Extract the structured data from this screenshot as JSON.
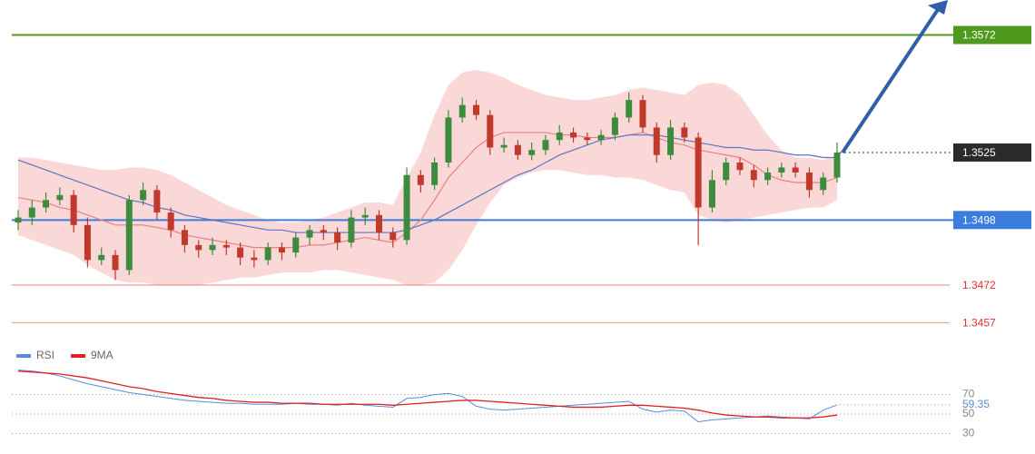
{
  "chart_data": [
    {
      "type": "candlestick",
      "ylim": [
        1.3448,
        1.3586
      ],
      "up_color": "#3d8b3d",
      "down_color": "#c0392b",
      "open": [
        1.3497,
        1.3499,
        1.3503,
        1.3506,
        1.3508,
        1.3496,
        1.3482,
        1.3484,
        1.3478,
        1.3506,
        1.351,
        1.3501,
        1.3494,
        1.3488,
        1.3486,
        1.3488,
        1.3487,
        1.3483,
        1.3482,
        1.3487,
        1.3485,
        1.3491,
        1.3494,
        1.3493,
        1.3489,
        1.3499,
        1.35,
        1.3493,
        1.349,
        1.3516,
        1.3512,
        1.3521,
        1.3539,
        1.3544,
        1.354,
        1.3527,
        1.3528,
        1.3524,
        1.3526,
        1.353,
        1.3533,
        1.3531,
        1.353,
        1.3532,
        1.3539,
        1.3546,
        1.3535,
        1.3524,
        1.3535,
        1.3531,
        1.3503,
        1.3514,
        1.3521,
        1.3518,
        1.3514,
        1.3517,
        1.3519,
        1.3517,
        1.351,
        1.3515
      ],
      "high": [
        1.3502,
        1.3506,
        1.3509,
        1.3511,
        1.351,
        1.3499,
        1.3487,
        1.3486,
        1.3508,
        1.3513,
        1.3512,
        1.3503,
        1.3496,
        1.349,
        1.3491,
        1.349,
        1.3489,
        1.3486,
        1.3489,
        1.3489,
        1.3493,
        1.3496,
        1.3496,
        1.3495,
        1.3502,
        1.3503,
        1.3502,
        1.3495,
        1.3519,
        1.3518,
        1.3523,
        1.3542,
        1.3547,
        1.3546,
        1.3542,
        1.3531,
        1.353,
        1.3529,
        1.3532,
        1.3536,
        1.3535,
        1.3533,
        1.3534,
        1.3541,
        1.3549,
        1.3548,
        1.3537,
        1.3538,
        1.3537,
        1.3533,
        1.3518,
        1.3523,
        1.3523,
        1.352,
        1.3519,
        1.3521,
        1.3521,
        1.3519,
        1.3517,
        1.3529
      ],
      "low": [
        1.3494,
        1.3496,
        1.3501,
        1.3504,
        1.3493,
        1.3479,
        1.348,
        1.3474,
        1.3476,
        1.3504,
        1.3498,
        1.3491,
        1.3485,
        1.3483,
        1.3484,
        1.3484,
        1.348,
        1.3479,
        1.348,
        1.3482,
        1.3483,
        1.3488,
        1.349,
        1.3486,
        1.3487,
        1.3496,
        1.349,
        1.3487,
        1.3488,
        1.3509,
        1.351,
        1.3519,
        1.3537,
        1.3538,
        1.3524,
        1.3525,
        1.3522,
        1.3522,
        1.3524,
        1.3528,
        1.3529,
        1.3528,
        1.3528,
        1.353,
        1.3537,
        1.3533,
        1.3521,
        1.3522,
        1.3529,
        1.3488,
        1.3501,
        1.3512,
        1.3516,
        1.3511,
        1.3512,
        1.3515,
        1.3515,
        1.3507,
        1.3508,
        1.3513
      ],
      "close": [
        1.3499,
        1.3503,
        1.3506,
        1.3508,
        1.3496,
        1.3482,
        1.3484,
        1.3478,
        1.3506,
        1.351,
        1.3501,
        1.3494,
        1.3488,
        1.3486,
        1.3488,
        1.3487,
        1.3483,
        1.3482,
        1.3487,
        1.3485,
        1.3491,
        1.3494,
        1.3493,
        1.3489,
        1.3499,
        1.35,
        1.3493,
        1.349,
        1.3516,
        1.3512,
        1.3521,
        1.3539,
        1.3544,
        1.354,
        1.3527,
        1.3528,
        1.3524,
        1.3526,
        1.353,
        1.3533,
        1.3531,
        1.353,
        1.3532,
        1.3539,
        1.3546,
        1.3535,
        1.3524,
        1.3535,
        1.3531,
        1.3503,
        1.3514,
        1.3521,
        1.3518,
        1.3514,
        1.3517,
        1.3519,
        1.3517,
        1.351,
        1.3515,
        1.3525
      ],
      "band": {
        "color": "#fad1d1",
        "upper": [
          1.3523,
          1.3523,
          1.3522,
          1.3521,
          1.352,
          1.3519,
          1.3518,
          1.3518,
          1.3519,
          1.3519,
          1.3518,
          1.3516,
          1.3513,
          1.351,
          1.3507,
          1.3504,
          1.3502,
          1.35,
          1.3498,
          1.3497,
          1.3497,
          1.3498,
          1.3499,
          1.3501,
          1.3503,
          1.3505,
          1.3505,
          1.3504,
          1.3515,
          1.3525,
          1.354,
          1.3552,
          1.3557,
          1.3558,
          1.3557,
          1.3555,
          1.3552,
          1.355,
          1.3548,
          1.3547,
          1.3546,
          1.3546,
          1.3547,
          1.3548,
          1.355,
          1.3551,
          1.355,
          1.3549,
          1.3548,
          1.3552,
          1.3553,
          1.3552,
          1.3548,
          1.354,
          1.3532,
          1.3526,
          1.3523,
          1.3523,
          1.3522,
          1.3524
        ],
        "lower": [
          1.3492,
          1.349,
          1.3488,
          1.3486,
          1.3484,
          1.348,
          1.3477,
          1.3474,
          1.3473,
          1.3473,
          1.3472,
          1.3472,
          1.3472,
          1.3472,
          1.3473,
          1.3474,
          1.3475,
          1.3475,
          1.3476,
          1.3477,
          1.3477,
          1.3477,
          1.3478,
          1.3478,
          1.3477,
          1.3476,
          1.3475,
          1.3474,
          1.3472,
          1.3472,
          1.3473,
          1.3478,
          1.3486,
          1.3496,
          1.3505,
          1.3512,
          1.3515,
          1.3517,
          1.3518,
          1.3518,
          1.3517,
          1.3516,
          1.3516,
          1.3515,
          1.3515,
          1.3514,
          1.3512,
          1.351,
          1.3509,
          1.35,
          1.3498,
          1.3497,
          1.3498,
          1.3499,
          1.35,
          1.3501,
          1.3502,
          1.3503,
          1.3503,
          1.3506
        ]
      },
      "overlays": [
        {
          "color": "#e88080",
          "values": [
            1.3507,
            1.3506,
            1.3505,
            1.3503,
            1.3502,
            1.35,
            1.3498,
            1.3496,
            1.3496,
            1.3496,
            1.3495,
            1.3494,
            1.3492,
            1.3491,
            1.349,
            1.3489,
            1.3488,
            1.3487,
            1.3487,
            1.3487,
            1.3487,
            1.3488,
            1.3488,
            1.3489,
            1.349,
            1.3491,
            1.349,
            1.3489,
            1.3493,
            1.3498,
            1.3506,
            1.3515,
            1.3521,
            1.3527,
            1.3531,
            1.3533,
            1.3533,
            1.3533,
            1.3533,
            1.3532,
            1.3532,
            1.3531,
            1.3531,
            1.3531,
            1.3532,
            1.3533,
            1.3531,
            1.3529,
            1.3528,
            1.3526,
            1.3525,
            1.3524,
            1.3523,
            1.352,
            1.3516,
            1.3514,
            1.3513,
            1.3513,
            1.3513,
            1.3515
          ]
        },
        {
          "color": "#5b73c4",
          "values": [
            1.3522,
            1.352,
            1.3518,
            1.3516,
            1.3514,
            1.3512,
            1.351,
            1.3508,
            1.3506,
            1.3505,
            1.3503,
            1.3502,
            1.35,
            1.3499,
            1.3498,
            1.3497,
            1.3496,
            1.3495,
            1.3494,
            1.3494,
            1.3493,
            1.3493,
            1.3493,
            1.3493,
            1.3493,
            1.3493,
            1.3493,
            1.3493,
            1.3494,
            1.3496,
            1.3498,
            1.3501,
            1.3504,
            1.3507,
            1.351,
            1.3513,
            1.3516,
            1.3518,
            1.3521,
            1.3524,
            1.3526,
            1.3528,
            1.353,
            1.3531,
            1.3532,
            1.3532,
            1.3532,
            1.3531,
            1.353,
            1.3529,
            1.3528,
            1.3527,
            1.3527,
            1.3526,
            1.3526,
            1.3525,
            1.3524,
            1.3524,
            1.3523,
            1.3523
          ]
        }
      ],
      "levels": [
        {
          "value": 1.3572,
          "color": "#4f9a1c",
          "style": "box"
        },
        {
          "value": 1.3525,
          "color": "#2b2b2b",
          "style": "current"
        },
        {
          "value": 1.3498,
          "color": "#3b7ddd",
          "style": "box"
        },
        {
          "value": 1.3472,
          "color": "#e03030",
          "style": "text"
        },
        {
          "value": 1.3457,
          "color": "#e03030",
          "style": "text"
        }
      ]
    },
    {
      "type": "line",
      "ylim": [
        15,
        95
      ],
      "yticks": [
        70,
        50,
        30
      ],
      "series": [
        {
          "name": "RSI",
          "color": "#5b8bd8",
          "values": [
            95,
            94,
            92,
            89,
            85,
            81,
            78,
            75,
            72,
            70,
            68,
            66,
            64,
            63,
            62,
            61,
            61,
            60,
            60,
            60,
            61,
            60,
            60,
            59,
            61,
            59,
            58,
            57,
            66,
            67,
            70,
            71,
            68,
            58,
            55,
            54,
            55,
            56,
            57,
            58,
            59,
            60,
            61,
            62,
            63,
            55,
            52,
            54,
            53,
            42,
            44,
            45,
            46,
            47,
            48,
            47,
            46,
            45,
            54,
            59.35
          ]
        },
        {
          "name": "9MA",
          "color": "#e02020",
          "values": [
            94,
            93,
            92,
            91,
            89,
            87,
            84,
            81,
            78,
            76,
            73,
            71,
            69,
            67,
            66,
            64,
            63,
            62,
            62,
            61,
            61,
            61,
            60,
            60,
            60,
            60,
            60,
            59,
            60,
            61,
            62,
            63,
            64,
            64,
            63,
            62,
            61,
            60,
            59,
            58,
            57,
            57,
            57,
            58,
            59,
            59,
            58,
            57,
            56,
            54,
            51,
            49,
            48,
            47,
            47,
            46,
            46,
            46,
            47,
            49
          ]
        }
      ]
    }
  ]
}
